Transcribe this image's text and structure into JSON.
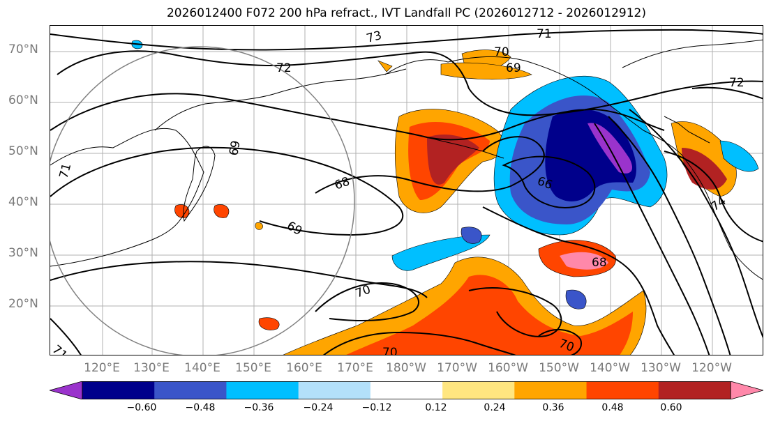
{
  "title": "2026012400 F072 200 hPa refract., IVT Landfall PC (2026012712 - 2026012912)",
  "lat_labels": [
    "70°N",
    "60°N",
    "50°N",
    "40°N",
    "30°N",
    "20°N"
  ],
  "lon_labels": [
    "120°E",
    "130°E",
    "140°E",
    "150°E",
    "160°E",
    "170°E",
    "180°W",
    "170°W",
    "160°W",
    "150°W",
    "140°W",
    "130°W",
    "120°W"
  ],
  "contour_labels": [
    "73",
    "71",
    "70",
    "69",
    "72",
    "72",
    "69",
    "71",
    "68",
    "66",
    "69",
    "68",
    "74",
    "70",
    "70",
    "70",
    "71"
  ],
  "colorbar": {
    "colors": [
      "#9a33cc",
      "#00008b",
      "#3a55c9",
      "#00bfff",
      "#b3e0fa",
      "#ffffff",
      "#ffe680",
      "#ffa500",
      "#ff4500",
      "#b22222",
      "#ff88aa"
    ],
    "tick_labels": [
      "−0.60",
      "−0.48",
      "−0.36",
      "−0.24",
      "−0.12",
      "0.12",
      "0.24",
      "0.36",
      "0.48",
      "0.60"
    ]
  }
}
